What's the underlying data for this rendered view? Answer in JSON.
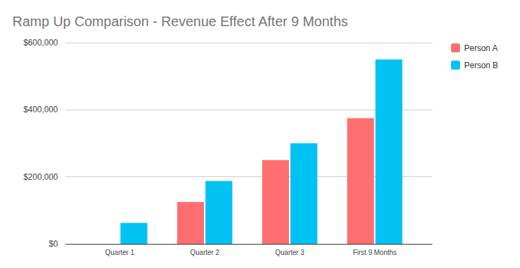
{
  "chart_data": {
    "type": "bar",
    "title": "Ramp Up Comparison - Revenue Effect After 9 Months",
    "categories": [
      "Quarter 1",
      "Quarter 2",
      "Quarter 3",
      "First 9 Months"
    ],
    "series": [
      {
        "name": "Person A",
        "color": "#ff6f6f",
        "values": [
          0,
          125000,
          250000,
          375000
        ]
      },
      {
        "name": "Person B",
        "color": "#00c2f3",
        "values": [
          62500,
          187500,
          300000,
          550000
        ]
      }
    ],
    "ylim": [
      0,
      600000
    ],
    "yticks": [
      {
        "value": 0,
        "label": "$0"
      },
      {
        "value": 200000,
        "label": "$200,000"
      },
      {
        "value": 400000,
        "label": "$400,000"
      },
      {
        "value": 600000,
        "label": "$600,000"
      }
    ],
    "grid": true,
    "legend": "right"
  }
}
